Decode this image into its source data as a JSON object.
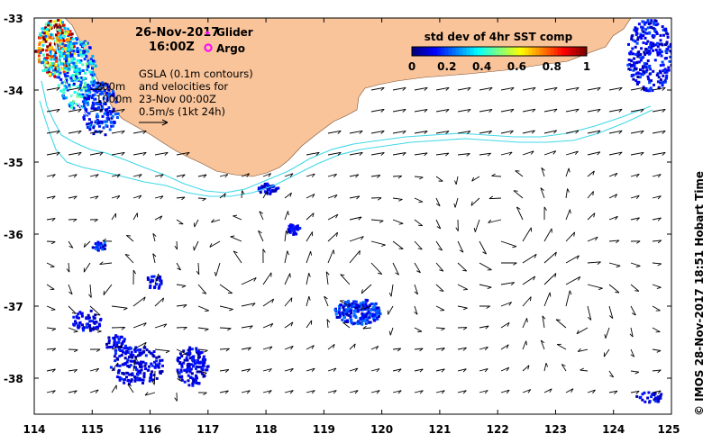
{
  "header": {
    "date": "26-Nov-2017",
    "time": "16:00Z"
  },
  "legend": {
    "glider": "Glider",
    "argo": "Argo",
    "glider_color": "#ff00ff",
    "argo_color": "#ff00ff"
  },
  "notes": {
    "line1": "GSLA (0.1m contours)",
    "line2": "and velocities for",
    "line3": "23-Nov 00:00Z",
    "line4": "0.5m/s (1kt 24h)"
  },
  "contours": {
    "label_200": "200m",
    "label_1000": "1000m"
  },
  "colorbar": {
    "title": "std dev of 4hr SST comp",
    "ticks": [
      "0",
      "0.2",
      "0.4",
      "0.6",
      "0.8",
      "1"
    ],
    "min": 0,
    "max": 1,
    "colormap": "jet"
  },
  "credit": "© IMOS 28-Nov-2017 18:51 Hobart Time",
  "axes": {
    "x_ticks": [
      "114",
      "115",
      "116",
      "117",
      "118",
      "119",
      "120",
      "121",
      "122",
      "123",
      "124",
      "125"
    ],
    "y_ticks": [
      "-33",
      "-34",
      "-35",
      "-36",
      "-37",
      "-38"
    ],
    "lon_range": [
      114,
      125
    ],
    "lat_range": [
      -38.5,
      -33
    ]
  },
  "colors": {
    "land": "#f9c49a",
    "shelf_contour": "#40d8e8",
    "arrow": "#000000"
  }
}
